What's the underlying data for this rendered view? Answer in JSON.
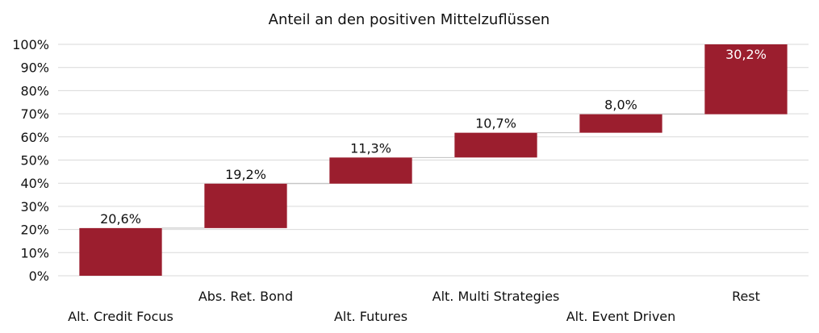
{
  "chart_data": {
    "type": "bar",
    "subtype": "waterfall",
    "title": "Anteil an den positiven Mittelzuflüssen",
    "categories": [
      "Alt. Credit Focus",
      "Abs. Ret. Bond",
      "Alt. Futures",
      "Alt. Multi Strategies",
      "Alt. Event Driven",
      "Rest"
    ],
    "values": [
      20.6,
      19.2,
      11.3,
      10.7,
      8.0,
      30.2
    ],
    "value_labels": [
      "20,6%",
      "19,2%",
      "11,3%",
      "10,7%",
      "8,0%",
      "30,2%"
    ],
    "y_ticks": [
      "0%",
      "10%",
      "20%",
      "30%",
      "40%",
      "50%",
      "60%",
      "70%",
      "80%",
      "90%",
      "100%"
    ],
    "ylim": [
      0,
      100
    ],
    "grid": true,
    "legend": "none",
    "bar_color": "#9b1e2e"
  }
}
